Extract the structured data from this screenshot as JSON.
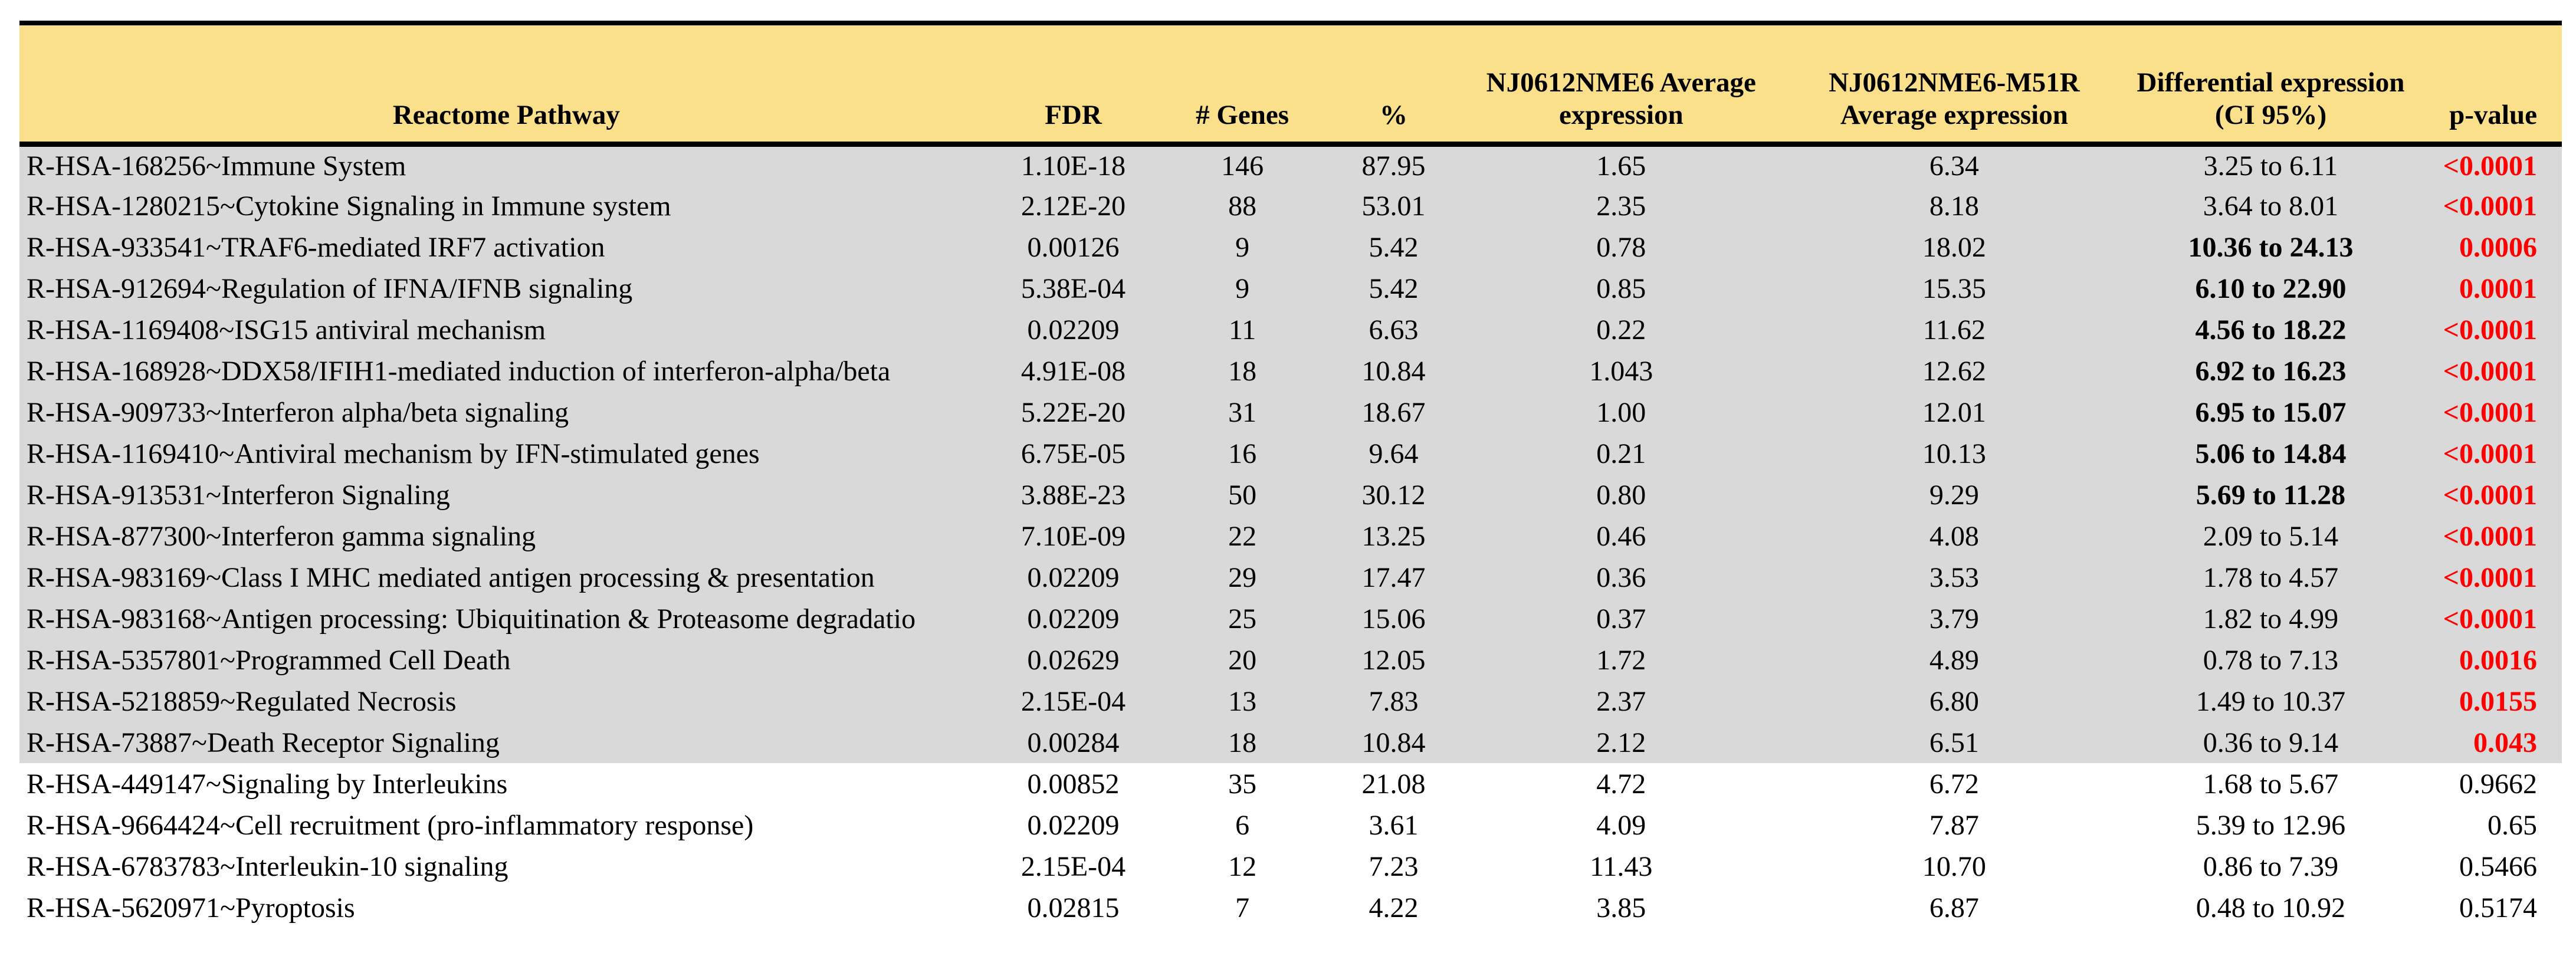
{
  "colors": {
    "header_bg": "#fbe08c",
    "shaded_row_bg": "#d9d9d9",
    "significant_p_color": "#ff0000",
    "border": "#000000",
    "text": "#000000"
  },
  "table": {
    "columns": [
      {
        "key": "pathway",
        "label": "Reactome Pathway"
      },
      {
        "key": "fdr",
        "label": "FDR"
      },
      {
        "key": "genes",
        "label": "# Genes"
      },
      {
        "key": "pct",
        "label": "%"
      },
      {
        "key": "nme6",
        "label": "NJ0612NME6 Average expression"
      },
      {
        "key": "m51r",
        "label": "NJ0612NME6-M51R Average expression"
      },
      {
        "key": "ci",
        "label": "Differential expression (CI 95%)"
      },
      {
        "key": "p",
        "label": "p-value"
      }
    ],
    "rows": [
      {
        "pathway": "R-HSA-168256~Immune System",
        "fdr": "1.10E-18",
        "genes": "146",
        "pct": "87.95",
        "nme6": "1.65",
        "m51r": "6.34",
        "ci": "3.25 to 6.11",
        "ci_bold": false,
        "p": "<0.0001",
        "p_significant": true,
        "shaded": true
      },
      {
        "pathway": "R-HSA-1280215~Cytokine Signaling in Immune system",
        "fdr": "2.12E-20",
        "genes": "88",
        "pct": "53.01",
        "nme6": "2.35",
        "m51r": "8.18",
        "ci": "3.64 to 8.01",
        "ci_bold": false,
        "p": "<0.0001",
        "p_significant": true,
        "shaded": true
      },
      {
        "pathway": "R-HSA-933541~TRAF6-mediated IRF7 activation",
        "fdr": "0.00126",
        "genes": "9",
        "pct": "5.42",
        "nme6": "0.78",
        "m51r": "18.02",
        "ci": "10.36 to 24.13",
        "ci_bold": true,
        "p": "0.0006",
        "p_significant": true,
        "shaded": true
      },
      {
        "pathway": "R-HSA-912694~Regulation of IFNA/IFNB signaling",
        "fdr": "5.38E-04",
        "genes": "9",
        "pct": "5.42",
        "nme6": "0.85",
        "m51r": "15.35",
        "ci": "6.10 to 22.90",
        "ci_bold": true,
        "p": "0.0001",
        "p_significant": true,
        "shaded": true
      },
      {
        "pathway": "R-HSA-1169408~ISG15 antiviral mechanism",
        "fdr": "0.02209",
        "genes": "11",
        "pct": "6.63",
        "nme6": "0.22",
        "m51r": "11.62",
        "ci": "4.56 to 18.22",
        "ci_bold": true,
        "p": "<0.0001",
        "p_significant": true,
        "shaded": true
      },
      {
        "pathway": "R-HSA-168928~DDX58/IFIH1-mediated induction of interferon-alpha/beta",
        "fdr": "4.91E-08",
        "genes": "18",
        "pct": "10.84",
        "nme6": "1.043",
        "m51r": "12.62",
        "ci": "6.92 to 16.23",
        "ci_bold": true,
        "p": "<0.0001",
        "p_significant": true,
        "shaded": true
      },
      {
        "pathway": "R-HSA-909733~Interferon alpha/beta signaling",
        "fdr": "5.22E-20",
        "genes": "31",
        "pct": "18.67",
        "nme6": "1.00",
        "m51r": "12.01",
        "ci": "6.95 to 15.07",
        "ci_bold": true,
        "p": "<0.0001",
        "p_significant": true,
        "shaded": true
      },
      {
        "pathway": "R-HSA-1169410~Antiviral mechanism by IFN-stimulated genes",
        "fdr": "6.75E-05",
        "genes": "16",
        "pct": "9.64",
        "nme6": "0.21",
        "m51r": "10.13",
        "ci": "5.06 to 14.84",
        "ci_bold": true,
        "p": "<0.0001",
        "p_significant": true,
        "shaded": true
      },
      {
        "pathway": "R-HSA-913531~Interferon Signaling",
        "fdr": "3.88E-23",
        "genes": "50",
        "pct": "30.12",
        "nme6": "0.80",
        "m51r": "9.29",
        "ci": "5.69 to 11.28",
        "ci_bold": true,
        "p": "<0.0001",
        "p_significant": true,
        "shaded": true
      },
      {
        "pathway": "R-HSA-877300~Interferon gamma signaling",
        "fdr": "7.10E-09",
        "genes": "22",
        "pct": "13.25",
        "nme6": "0.46",
        "m51r": "4.08",
        "ci": "2.09 to 5.14",
        "ci_bold": false,
        "p": "<0.0001",
        "p_significant": true,
        "shaded": true
      },
      {
        "pathway": "R-HSA-983169~Class I MHC mediated antigen processing & presentation",
        "fdr": "0.02209",
        "genes": "29",
        "pct": "17.47",
        "nme6": "0.36",
        "m51r": "3.53",
        "ci": "1.78 to 4.57",
        "ci_bold": false,
        "p": "<0.0001",
        "p_significant": true,
        "shaded": true
      },
      {
        "pathway": "R-HSA-983168~Antigen processing: Ubiquitination & Proteasome degradatio",
        "fdr": "0.02209",
        "genes": "25",
        "pct": "15.06",
        "nme6": "0.37",
        "m51r": "3.79",
        "ci": "1.82 to 4.99",
        "ci_bold": false,
        "p": "<0.0001",
        "p_significant": true,
        "shaded": true
      },
      {
        "pathway": "R-HSA-5357801~Programmed Cell Death",
        "fdr": "0.02629",
        "genes": "20",
        "pct": "12.05",
        "nme6": "1.72",
        "m51r": "4.89",
        "ci": "0.78 to 7.13",
        "ci_bold": false,
        "p": "0.0016",
        "p_significant": true,
        "shaded": true
      },
      {
        "pathway": "R-HSA-5218859~Regulated Necrosis",
        "fdr": "2.15E-04",
        "genes": "13",
        "pct": "7.83",
        "nme6": "2.37",
        "m51r": "6.80",
        "ci": "1.49 to 10.37",
        "ci_bold": false,
        "p": "0.0155",
        "p_significant": true,
        "shaded": true
      },
      {
        "pathway": "R-HSA-73887~Death Receptor Signaling",
        "fdr": "0.00284",
        "genes": "18",
        "pct": "10.84",
        "nme6": "2.12",
        "m51r": "6.51",
        "ci": "0.36 to 9.14",
        "ci_bold": false,
        "p": "0.043",
        "p_significant": true,
        "shaded": true
      },
      {
        "pathway": "R-HSA-449147~Signaling by Interleukins",
        "fdr": "0.00852",
        "genes": "35",
        "pct": "21.08",
        "nme6": "4.72",
        "m51r": "6.72",
        "ci": "1.68 to 5.67",
        "ci_bold": false,
        "p": "0.9662",
        "p_significant": false,
        "shaded": false
      },
      {
        "pathway": "R-HSA-9664424~Cell recruitment (pro-inflammatory response)",
        "fdr": "0.02209",
        "genes": "6",
        "pct": "3.61",
        "nme6": "4.09",
        "m51r": "7.87",
        "ci": "5.39 to 12.96",
        "ci_bold": false,
        "p": "0.65",
        "p_significant": false,
        "shaded": false
      },
      {
        "pathway": "R-HSA-6783783~Interleukin-10 signaling",
        "fdr": "2.15E-04",
        "genes": "12",
        "pct": "7.23",
        "nme6": "11.43",
        "m51r": "10.70",
        "ci": "0.86 to 7.39",
        "ci_bold": false,
        "p": "0.5466",
        "p_significant": false,
        "shaded": false
      },
      {
        "pathway": "R-HSA-5620971~Pyroptosis",
        "fdr": "0.02815",
        "genes": "7",
        "pct": "4.22",
        "nme6": "3.85",
        "m51r": "6.87",
        "ci": "0.48 to 10.92",
        "ci_bold": false,
        "p": "0.5174",
        "p_significant": false,
        "shaded": false
      }
    ]
  }
}
